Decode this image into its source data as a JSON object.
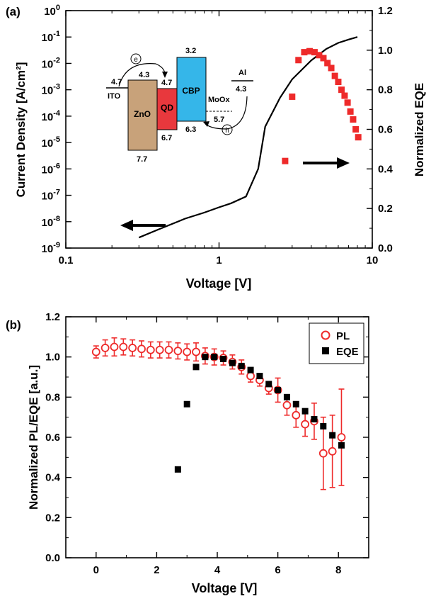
{
  "colors": {
    "accent_red": "#ee2a2a",
    "black": "#000000",
    "zno": "#c8a27a",
    "qd": "#e8383d",
    "cbp": "#35b6e9"
  },
  "chart_data": [
    {
      "panel": "(a)",
      "type": "line",
      "xscale": "log",
      "xlim": [
        0.1,
        10
      ],
      "xlabel": "Voltage [V]",
      "xticks": [
        0.1,
        1,
        10
      ],
      "xtick_labels": [
        "0.1",
        "1",
        "10"
      ],
      "y_left": {
        "label": "Current Density [A/cm²]",
        "scale": "log",
        "lim": [
          1e-09,
          1
        ],
        "ticks": [
          1e-09,
          1e-08,
          1e-07,
          1e-06,
          1e-05,
          0.0001,
          0.001,
          0.01,
          0.1,
          1
        ],
        "tick_exponents": [
          "-9",
          "-8",
          "-7",
          "-6",
          "-5",
          "-4",
          "-3",
          "-2",
          "-1",
          "0"
        ]
      },
      "y_right": {
        "label": "Normalized EQE",
        "scale": "linear",
        "lim": [
          0,
          1.2
        ],
        "ticks": [
          0,
          0.2,
          0.4,
          0.6,
          0.8,
          1.0,
          1.2
        ],
        "tick_labels": [
          "0.0",
          "0.2",
          "0.4",
          "0.6",
          "0.8",
          "1.0",
          "1.2"
        ]
      },
      "series": [
        {
          "kind": "line",
          "axis": "left",
          "color": "#000000",
          "x": [
            0.3,
            0.4,
            0.6,
            0.8,
            1.0,
            1.2,
            1.5,
            1.8,
            2.0,
            2.5,
            3.0,
            4.0,
            5.0,
            6.0,
            7.0,
            8.0
          ],
          "y": [
            2.5e-09,
            5e-09,
            1.3e-08,
            2.2e-08,
            3.5e-08,
            5e-08,
            9e-08,
            1e-06,
            4e-05,
            0.0005,
            0.0025,
            0.013,
            0.035,
            0.06,
            0.08,
            0.1
          ]
        },
        {
          "kind": "scatter",
          "axis": "right",
          "color": "#ee2a2a",
          "x": [
            2.7,
            3.0,
            3.3,
            3.6,
            3.9,
            4.2,
            4.5,
            4.8,
            5.1,
            5.4,
            5.7,
            6.0,
            6.3,
            6.6,
            6.9,
            7.2,
            7.5,
            7.8,
            8.1
          ],
          "y": [
            0.44,
            0.765,
            0.95,
            0.99,
            0.995,
            0.99,
            0.975,
            0.96,
            0.935,
            0.91,
            0.87,
            0.84,
            0.8,
            0.77,
            0.735,
            0.69,
            0.65,
            0.6,
            0.56
          ]
        }
      ],
      "inset": {
        "title": "band diagram",
        "labels": {
          "ito": "ITO",
          "ito_level": "4.7",
          "zno": "ZnO",
          "zno_top": "4.3",
          "zno_bottom": "7.7",
          "qd": "QD",
          "qd_top": "4.7",
          "qd_bottom": "6.7",
          "cbp": "CBP",
          "cbp_top": "3.2",
          "cbp_bottom": "6.3",
          "moox": "MoOx",
          "moox_level": "5.7",
          "al": "Al",
          "al_level": "4.3",
          "electron": "e",
          "hole": "h"
        }
      }
    },
    {
      "panel": "(b)",
      "type": "scatter",
      "xlim": [
        -1,
        9
      ],
      "ylim": [
        0,
        1.2
      ],
      "xlabel": "Voltage [V]",
      "ylabel": "Normalized PL/EQE [a.u.]",
      "xticks": [
        0,
        2,
        4,
        6,
        8
      ],
      "xtick_labels": [
        "0",
        "2",
        "4",
        "6",
        "8"
      ],
      "yticks": [
        0,
        0.2,
        0.4,
        0.6,
        0.8,
        1.0,
        1.2
      ],
      "ytick_labels": [
        "0.0",
        "0.2",
        "0.4",
        "0.6",
        "0.8",
        "1.0",
        "1.2"
      ],
      "legend": "top-right",
      "series": [
        {
          "name": "PL",
          "marker": "open-circle",
          "color": "#ee2a2a",
          "x": [
            0,
            0.3,
            0.6,
            0.9,
            1.2,
            1.5,
            1.8,
            2.1,
            2.4,
            2.7,
            3.0,
            3.3,
            3.6,
            3.9,
            4.2,
            4.5,
            4.8,
            5.1,
            5.4,
            5.7,
            6.0,
            6.3,
            6.6,
            6.9,
            7.2,
            7.5,
            7.8,
            8.1
          ],
          "y": [
            1.025,
            1.045,
            1.05,
            1.05,
            1.045,
            1.04,
            1.035,
            1.035,
            1.035,
            1.03,
            1.025,
            1.025,
            1.005,
            1.0,
            0.995,
            0.975,
            0.95,
            0.905,
            0.885,
            0.845,
            0.835,
            0.76,
            0.71,
            0.665,
            0.68,
            0.52,
            0.53,
            0.6
          ],
          "err": [
            0.03,
            0.04,
            0.045,
            0.04,
            0.04,
            0.04,
            0.04,
            0.04,
            0.04,
            0.04,
            0.04,
            0.045,
            0.04,
            0.04,
            0.035,
            0.035,
            0.035,
            0.03,
            0.03,
            0.03,
            0.06,
            0.05,
            0.06,
            0.06,
            0.09,
            0.18,
            0.18,
            0.24
          ]
        },
        {
          "name": "EQE",
          "marker": "filled-square",
          "color": "#000000",
          "x": [
            2.7,
            3.0,
            3.3,
            3.6,
            3.9,
            4.2,
            4.5,
            4.8,
            5.1,
            5.4,
            5.7,
            6.0,
            6.3,
            6.6,
            6.9,
            7.2,
            7.5,
            7.8,
            8.1
          ],
          "y": [
            0.44,
            0.765,
            0.95,
            1.0,
            1.0,
            0.99,
            0.97,
            0.955,
            0.935,
            0.905,
            0.865,
            0.835,
            0.8,
            0.765,
            0.73,
            0.69,
            0.655,
            0.61,
            0.56
          ]
        }
      ]
    }
  ]
}
